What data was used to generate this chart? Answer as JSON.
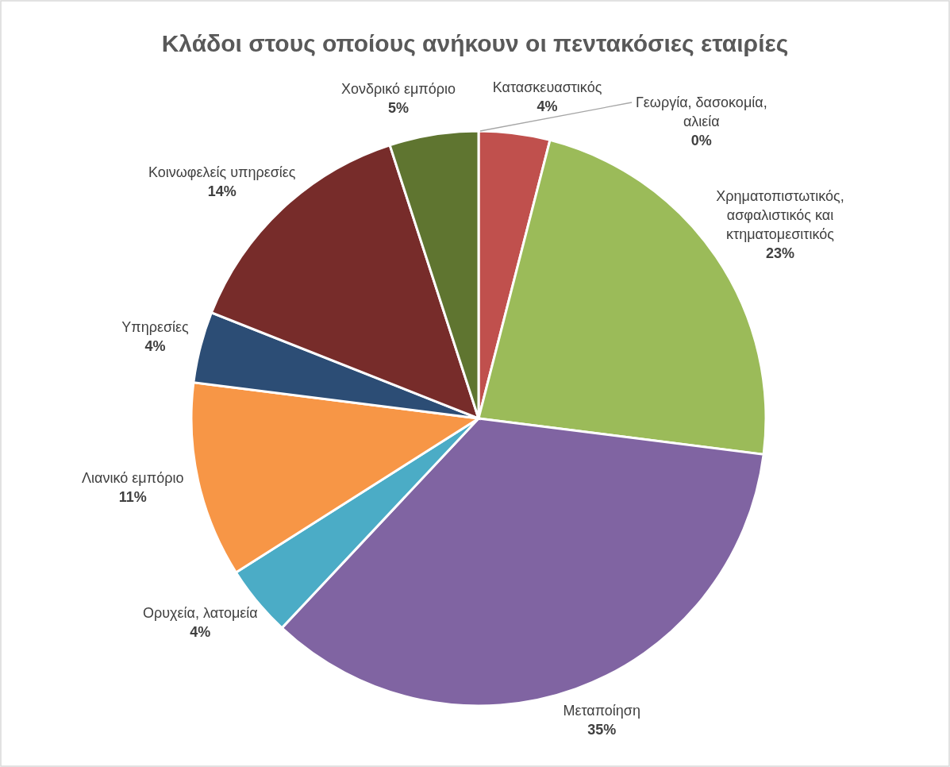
{
  "chart_data": {
    "type": "pie",
    "title": "Κλάδοι στους οποίους ανήκουν οι πεντακόσιες εταιρίες",
    "categories": [
      "Γεωργία, δασοκομία, αλιεία",
      "Κατασκευαστικός",
      "Χρηματοπιστωτικός, ασφαλιστικός και κτηματομεσιτικός",
      "Μεταποίηση",
      "Ορυχεία, λατομεία",
      "Λιανικό εμπόριο",
      "Υπηρεσίες",
      "Κοινωφελείς υπηρεσίες",
      "Χονδρικό εμπόριο"
    ],
    "values": [
      0,
      4,
      23,
      35,
      4,
      11,
      4,
      14,
      5
    ],
    "colors": [
      "#f2f2f2",
      "#c0504d",
      "#9bbb59",
      "#8064a2",
      "#4bacc6",
      "#f79646",
      "#2c4d75",
      "#772c2a",
      "#5f7530"
    ],
    "value_labels": [
      "0%",
      "4%",
      "23%",
      "35%",
      "4%",
      "11%",
      "4%",
      "14%",
      "5%"
    ]
  }
}
